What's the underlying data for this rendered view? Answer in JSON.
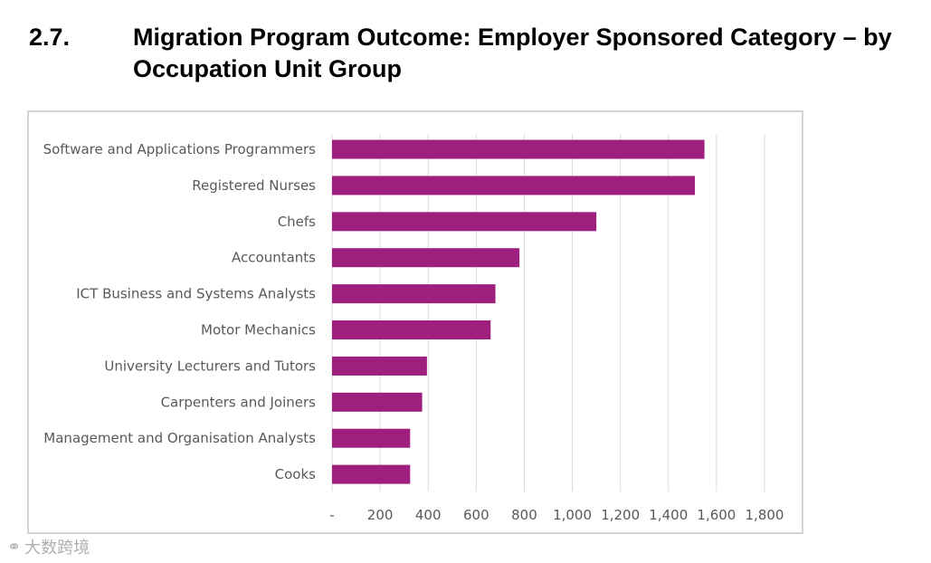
{
  "heading": {
    "number": "2.7.",
    "title": "Migration Program Outcome: Employer Sponsored Category – by Occupation Unit Group"
  },
  "colors": {
    "bar": "#9e1f7d",
    "grid": "#d9d9d9",
    "text": "#595959"
  },
  "chart_data": {
    "type": "bar",
    "orientation": "horizontal",
    "title": "",
    "xlabel": "",
    "ylabel": "",
    "categories": [
      "Software and Applications Programmers",
      "Registered Nurses",
      "Chefs",
      "Accountants",
      "ICT Business and Systems Analysts",
      "Motor Mechanics",
      "University Lecturers and Tutors",
      "Carpenters and Joiners",
      "Management and Organisation Analysts",
      "Cooks"
    ],
    "values": [
      1550,
      1510,
      1100,
      780,
      680,
      660,
      395,
      375,
      325,
      325
    ],
    "xlim": [
      0,
      1800
    ],
    "ticks": [
      0,
      200,
      400,
      600,
      800,
      1000,
      1200,
      1400,
      1600,
      1800
    ],
    "tick_labels": [
      "-",
      "200",
      "400",
      "600",
      "800",
      "1,000",
      "1,200",
      "1,400",
      "1,600",
      "1,800"
    ],
    "grid": true,
    "legend": "none"
  },
  "watermark": {
    "footer_text": "大数跨境"
  }
}
